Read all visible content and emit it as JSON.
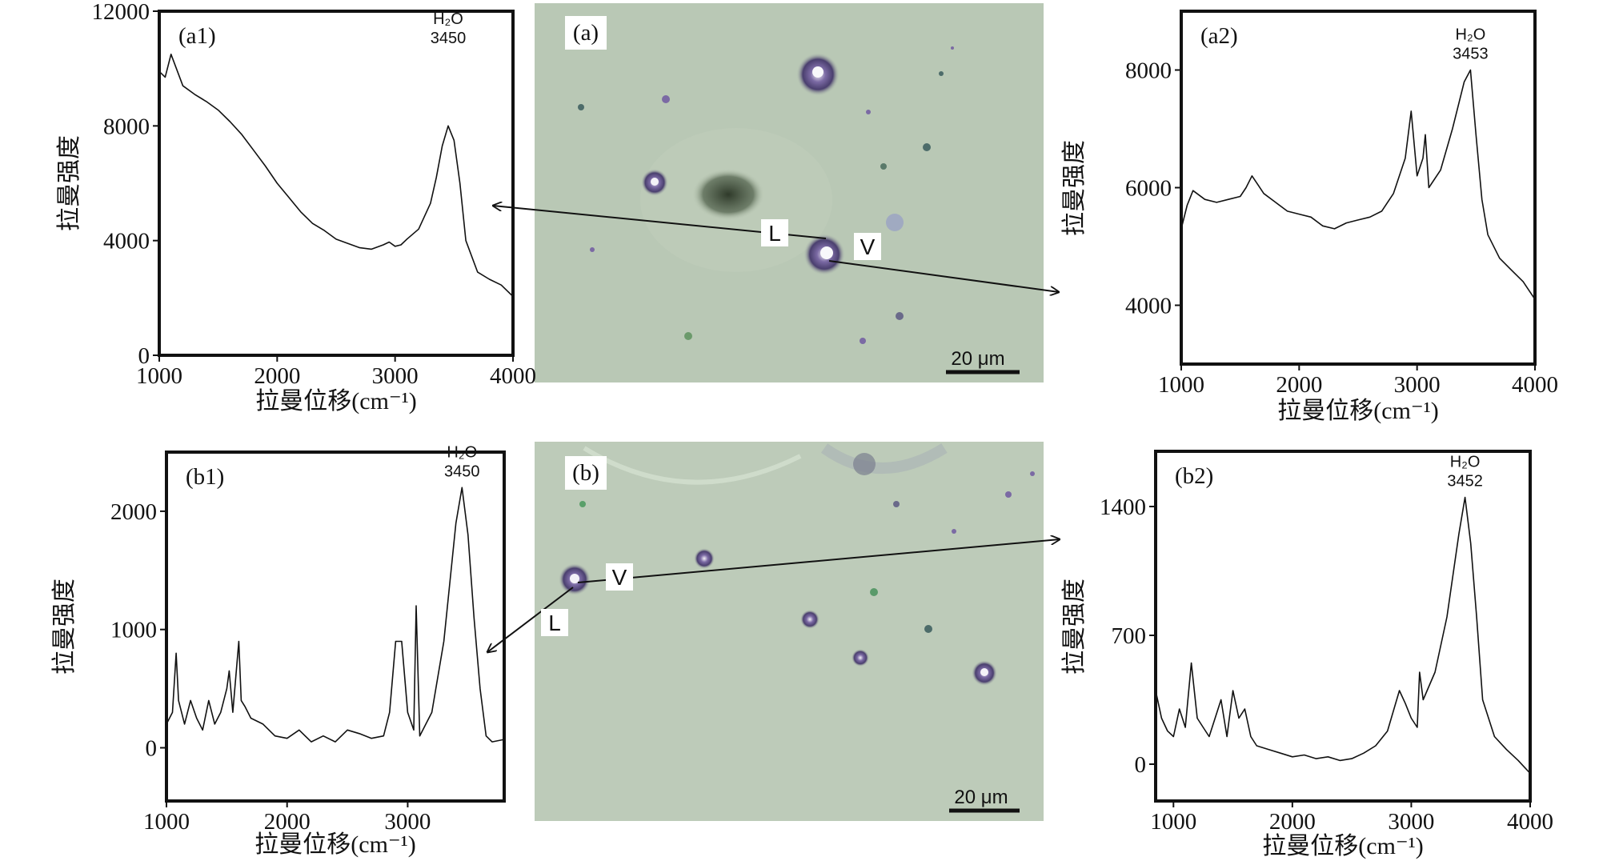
{
  "chart_data": [
    {
      "panel": "(a1)",
      "type": "line",
      "xlabel": "拉曼位移(cm⁻¹)",
      "ylabel": "拉曼强度",
      "xlim": [
        1000,
        4000
      ],
      "ylim": [
        0,
        12000
      ],
      "xticks": [
        "1000",
        "2000",
        "3000",
        "4000"
      ],
      "yticks": [
        "0",
        "4000",
        "8000",
        "12000"
      ],
      "peak": {
        "species": "H₂O",
        "x": 3450,
        "label": "3450"
      },
      "x": [
        1000,
        1050,
        1100,
        1200,
        1300,
        1400,
        1500,
        1600,
        1700,
        1800,
        1900,
        2000,
        2100,
        2200,
        2300,
        2400,
        2500,
        2600,
        2700,
        2800,
        2900,
        2950,
        3000,
        3050,
        3100,
        3200,
        3300,
        3350,
        3400,
        3450,
        3500,
        3550,
        3600,
        3700,
        3800,
        3900,
        4000
      ],
      "values": [
        9900,
        9700,
        10500,
        9400,
        9100,
        8850,
        8550,
        8150,
        7700,
        7150,
        6600,
        6000,
        5500,
        5000,
        4600,
        4350,
        4050,
        3900,
        3750,
        3700,
        3850,
        3950,
        3800,
        3850,
        4050,
        4400,
        5300,
        6200,
        7300,
        8000,
        7500,
        6000,
        4000,
        2900,
        2650,
        2450,
        2050
      ]
    },
    {
      "panel": "(a2)",
      "type": "line",
      "xlabel": "拉曼位移(cm⁻¹)",
      "ylabel": "拉曼强度",
      "xlim": [
        1000,
        4000
      ],
      "ylim": [
        3000,
        9000
      ],
      "xticks": [
        "1000",
        "2000",
        "3000",
        "4000"
      ],
      "yticks": [
        "4000",
        "6000",
        "8000"
      ],
      "peak": {
        "species": "H₂O",
        "x": 3453,
        "label": "3453"
      },
      "x": [
        1000,
        1050,
        1100,
        1200,
        1300,
        1400,
        1500,
        1550,
        1600,
        1650,
        1700,
        1800,
        1900,
        2000,
        2100,
        2200,
        2300,
        2400,
        2500,
        2600,
        2700,
        2800,
        2900,
        2950,
        3000,
        3050,
        3070,
        3100,
        3200,
        3300,
        3400,
        3453,
        3500,
        3550,
        3600,
        3700,
        3800,
        3900,
        4000
      ],
      "values": [
        5300,
        5700,
        5950,
        5800,
        5750,
        5800,
        5850,
        6000,
        6200,
        6050,
        5900,
        5750,
        5600,
        5550,
        5500,
        5350,
        5300,
        5400,
        5450,
        5500,
        5600,
        5900,
        6500,
        7300,
        6200,
        6500,
        6900,
        6000,
        6300,
        7000,
        7800,
        8000,
        6900,
        5800,
        5200,
        4800,
        4600,
        4400,
        4100
      ]
    },
    {
      "panel": "(b1)",
      "type": "line",
      "xlabel": "拉曼位移(cm⁻¹)",
      "ylabel": "拉曼强度",
      "xlim": [
        1000,
        3800
      ],
      "ylim": [
        -450,
        2500
      ],
      "xticks": [
        "1000",
        "2000",
        "3000"
      ],
      "yticks": [
        "0",
        "1000",
        "2000"
      ],
      "peak": {
        "species": "H₂O",
        "x": 3450,
        "label": "3450"
      },
      "x": [
        1000,
        1050,
        1080,
        1100,
        1150,
        1200,
        1250,
        1300,
        1350,
        1400,
        1450,
        1500,
        1520,
        1550,
        1600,
        1620,
        1650,
        1700,
        1800,
        1900,
        2000,
        2100,
        2200,
        2300,
        2400,
        2500,
        2600,
        2700,
        2800,
        2850,
        2900,
        2950,
        3000,
        3050,
        3070,
        3100,
        3200,
        3300,
        3400,
        3450,
        3500,
        3550,
        3600,
        3650,
        3700,
        3800
      ],
      "values": [
        200,
        300,
        800,
        400,
        200,
        400,
        250,
        150,
        400,
        200,
        300,
        500,
        650,
        300,
        900,
        400,
        350,
        250,
        200,
        100,
        80,
        150,
        50,
        100,
        50,
        150,
        120,
        80,
        100,
        300,
        900,
        900,
        300,
        150,
        1200,
        100,
        300,
        900,
        1900,
        2200,
        1800,
        1100,
        500,
        100,
        50,
        70
      ]
    },
    {
      "panel": "(b2)",
      "type": "line",
      "xlabel": "拉曼位移(cm⁻¹)",
      "ylabel": "拉曼强度",
      "xlim": [
        850,
        4000
      ],
      "ylim": [
        -200,
        1700
      ],
      "xticks": [
        "1000",
        "2000",
        "3000",
        "4000"
      ],
      "yticks": [
        "0",
        "700",
        "1400"
      ],
      "peak": {
        "species": "H₂O",
        "x": 3452,
        "label": "3452"
      },
      "x": [
        850,
        900,
        950,
        1000,
        1050,
        1100,
        1150,
        1200,
        1250,
        1300,
        1400,
        1450,
        1500,
        1550,
        1600,
        1650,
        1700,
        1800,
        1900,
        2000,
        2100,
        2200,
        2300,
        2400,
        2500,
        2600,
        2700,
        2800,
        2900,
        2950,
        3000,
        3050,
        3070,
        3100,
        3200,
        3300,
        3400,
        3452,
        3500,
        3550,
        3600,
        3700,
        3800,
        3900,
        4000
      ],
      "values": [
        400,
        250,
        180,
        150,
        300,
        200,
        550,
        250,
        200,
        150,
        350,
        150,
        400,
        250,
        300,
        150,
        100,
        80,
        60,
        40,
        50,
        30,
        40,
        20,
        30,
        60,
        100,
        180,
        400,
        330,
        250,
        200,
        500,
        350,
        500,
        800,
        1250,
        1450,
        1200,
        800,
        350,
        150,
        80,
        20,
        -50
      ]
    }
  ],
  "micrographs": [
    {
      "panel": "(a)",
      "scale_bar": "20 μm",
      "vapor_label": "V",
      "liquid_label": "L"
    },
    {
      "panel": "(b)",
      "scale_bar": "20 μm",
      "vapor_label": "V",
      "liquid_label": "L"
    }
  ]
}
